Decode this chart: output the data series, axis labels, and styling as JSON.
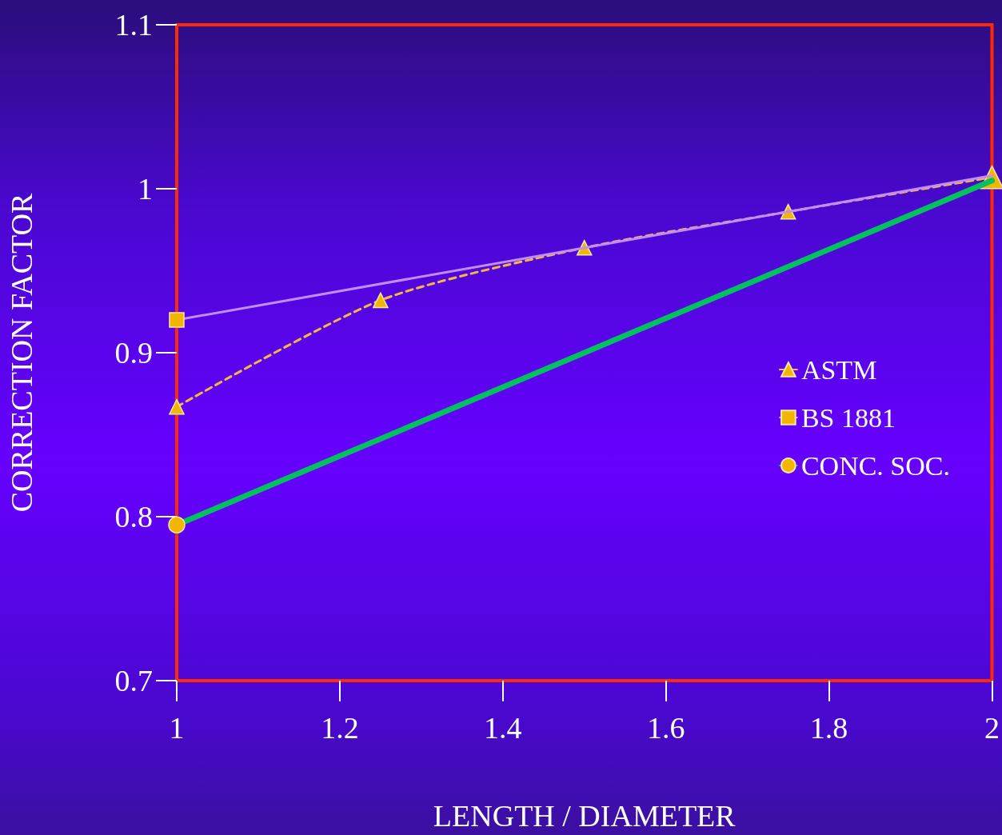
{
  "chart_data": {
    "type": "line",
    "xlabel": "LENGTH / DIAMETER",
    "ylabel": "CORRECTION FACTOR",
    "xlim": [
      1,
      2
    ],
    "xticks": [
      1,
      1.2,
      1.4,
      1.6,
      1.8,
      2
    ],
    "ylim": [
      0.7,
      1.1
    ],
    "yticks": [
      0.7,
      0.8,
      0.9,
      1,
      1.1
    ],
    "grid": false,
    "legend": "right",
    "series": [
      {
        "name": "ASTM",
        "color": "#f5b840",
        "x": [
          1,
          1.25,
          1.5,
          1.75,
          2
        ],
        "values": [
          0.867,
          0.932,
          0.964,
          0.986,
          1.007
        ],
        "marker": "triangle",
        "line_style": "dashed"
      },
      {
        "name": "BS 1881",
        "color": "#c08cff",
        "x": [
          1,
          2
        ],
        "values": [
          0.92,
          1.008
        ],
        "marker": "square",
        "line_style": "solid"
      },
      {
        "name": "CONC. SOC.",
        "color": "#00c060",
        "x": [
          1,
          2
        ],
        "values": [
          0.795,
          1.005
        ],
        "marker": "circle",
        "line_style": "solid"
      }
    ]
  }
}
